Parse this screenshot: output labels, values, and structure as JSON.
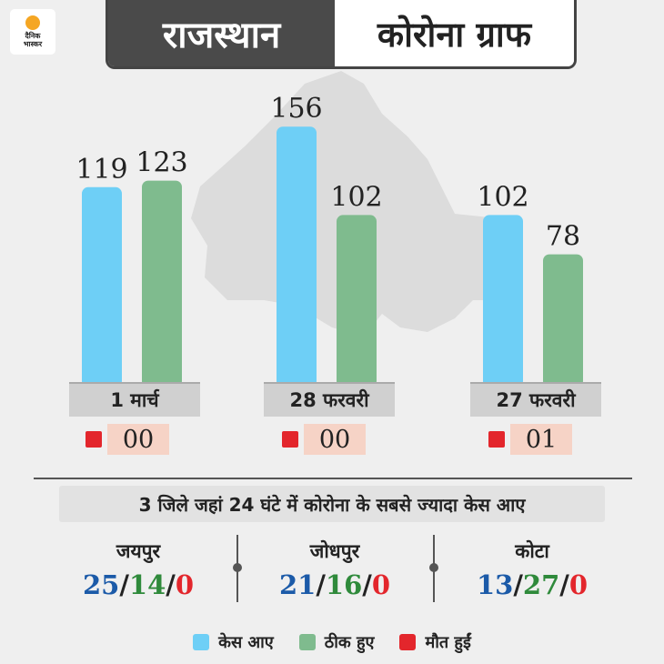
{
  "header": {
    "logo_text_line1": "दैनिक",
    "logo_text_line2": "भास्कर",
    "title_left": "राजस्थान",
    "title_right": "कोरोना ग्राफ"
  },
  "colors": {
    "cases": "#6ecff6",
    "recovered": "#7fbb8e",
    "deaths": "#e3262c",
    "header_dark": "#4a4a4a"
  },
  "chart_data": {
    "type": "bar",
    "categories": [
      "1 मार्च",
      "28 फरवरी",
      "27 फरवरी"
    ],
    "series": [
      {
        "name": "केस आए",
        "values": [
          119,
          156,
          102
        ],
        "labels": [
          "119",
          "156",
          "102"
        ]
      },
      {
        "name": "ठीक हुए",
        "values": [
          123,
          102,
          78
        ],
        "labels": [
          "123",
          "102",
          "78"
        ]
      }
    ],
    "deaths": [
      "00",
      "00",
      "01"
    ],
    "ylim": [
      0,
      160
    ],
    "grid": false,
    "legend": "bottom"
  },
  "districts": {
    "heading": "3 जिले जहां 24 घंटे में कोरोना के सबसे ज्यादा केस आए",
    "items": [
      {
        "name": "जयपुर",
        "cases": "25",
        "recovered": "14",
        "deaths": "0"
      },
      {
        "name": "जोधपुर",
        "cases": "21",
        "recovered": "16",
        "deaths": "0"
      },
      {
        "name": "कोटा",
        "cases": "13",
        "recovered": "27",
        "deaths": "0"
      }
    ],
    "separator": "/"
  },
  "legend": {
    "items": [
      {
        "label": "केस आए",
        "color": "#6ecff6"
      },
      {
        "label": "ठीक हुए",
        "color": "#7fbb8e"
      },
      {
        "label": "मौत हुईं",
        "color": "#e3262c"
      }
    ]
  }
}
